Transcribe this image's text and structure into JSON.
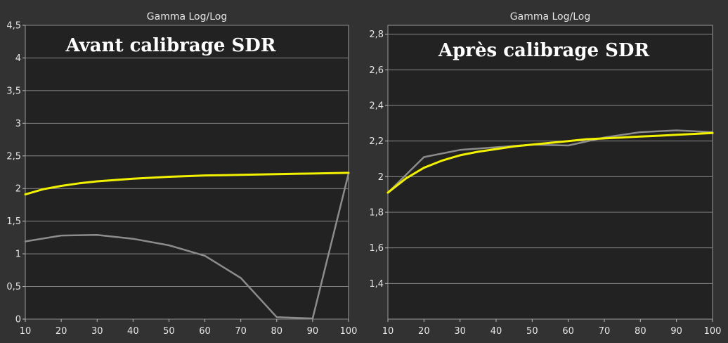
{
  "colors": {
    "background": "#323232",
    "plot_area": "#222222",
    "grid": "#8a8a8a",
    "text": "#e6e6e6",
    "measured_series": "#8c8c8c",
    "target_series": "#f2f200"
  },
  "chart_data": [
    {
      "type": "line",
      "title": "Gamma Log/Log",
      "annotation": "Avant calibrage SDR",
      "xlabel": "",
      "ylabel": "",
      "xlim": [
        10,
        100
      ],
      "ylim": [
        0,
        4.5
      ],
      "x_ticks": [
        10,
        20,
        30,
        40,
        50,
        60,
        70,
        80,
        90,
        100
      ],
      "x_tick_labels": [
        "10",
        "20",
        "30",
        "40",
        "50",
        "60",
        "70",
        "80",
        "90",
        "100"
      ],
      "y_ticks": [
        0,
        0.5,
        1,
        1.5,
        2,
        2.5,
        3,
        3.5,
        4,
        4.5
      ],
      "y_tick_labels": [
        "0",
        "0,5",
        "1",
        "1,5",
        "2",
        "2,5",
        "3",
        "3,5",
        "4",
        "4,5"
      ],
      "grid": true,
      "legend": "none",
      "series": [
        {
          "color": "#f2f200",
          "x": [
            10,
            15,
            20,
            25,
            30,
            35,
            40,
            45,
            50,
            55,
            60,
            65,
            70,
            75,
            80,
            85,
            90,
            95,
            100
          ],
          "values": [
            1.91,
            1.99,
            2.04,
            2.08,
            2.11,
            2.13,
            2.15,
            2.165,
            2.18,
            2.19,
            2.2,
            2.205,
            2.21,
            2.215,
            2.22,
            2.225,
            2.23,
            2.235,
            2.24
          ]
        },
        {
          "color": "#8c8c8c",
          "x": [
            10,
            20,
            30,
            40,
            50,
            60,
            70,
            80,
            90,
            100
          ],
          "values": [
            1.19,
            1.28,
            1.29,
            1.23,
            1.13,
            0.97,
            0.63,
            0.03,
            0.01,
            2.23
          ]
        }
      ]
    },
    {
      "type": "line",
      "title": "Gamma Log/Log",
      "annotation": "Après calibrage SDR",
      "xlabel": "",
      "ylabel": "",
      "xlim": [
        10,
        100
      ],
      "ylim": [
        1.2,
        2.85
      ],
      "x_ticks": [
        10,
        20,
        30,
        40,
        50,
        60,
        70,
        80,
        90,
        100
      ],
      "x_tick_labels": [
        "10",
        "20",
        "30",
        "40",
        "50",
        "60",
        "70",
        "80",
        "90",
        "100"
      ],
      "y_ticks": [
        1.4,
        1.6,
        1.8,
        2.0,
        2.2,
        2.4,
        2.6,
        2.8
      ],
      "y_tick_labels": [
        "1,4",
        "1,6",
        "1,8",
        "2",
        "2,2",
        "2,4",
        "2,6",
        "2,8"
      ],
      "grid": true,
      "legend": "none",
      "series": [
        {
          "color": "#f2f200",
          "x": [
            10,
            15,
            20,
            25,
            30,
            35,
            40,
            45,
            50,
            55,
            60,
            65,
            70,
            75,
            80,
            85,
            90,
            95,
            100
          ],
          "values": [
            1.91,
            1.99,
            2.05,
            2.09,
            2.12,
            2.14,
            2.155,
            2.17,
            2.18,
            2.19,
            2.2,
            2.21,
            2.215,
            2.22,
            2.225,
            2.23,
            2.235,
            2.24,
            2.245
          ]
        },
        {
          "color": "#8c8c8c",
          "x": [
            10,
            20,
            30,
            40,
            50,
            60,
            70,
            80,
            90,
            100
          ],
          "values": [
            1.91,
            2.11,
            2.15,
            2.165,
            2.18,
            2.175,
            2.22,
            2.25,
            2.26,
            2.25
          ]
        }
      ]
    }
  ]
}
